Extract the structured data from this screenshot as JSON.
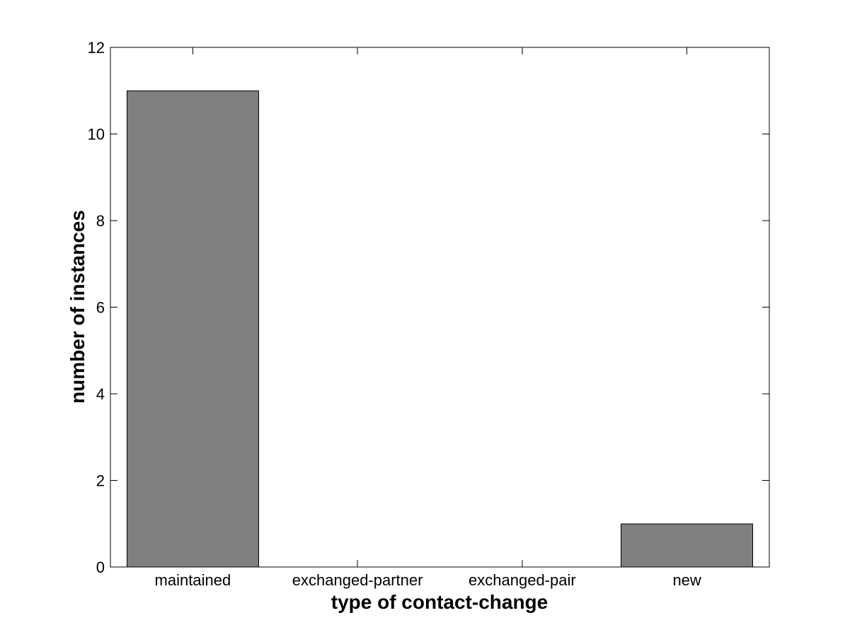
{
  "figure": {
    "background_color": "#ffffff"
  },
  "chart_data": {
    "type": "bar",
    "title": "",
    "categories": [
      "maintained",
      "exchanged-partner",
      "exchanged-pair",
      "new"
    ],
    "values": [
      11,
      0,
      0,
      1
    ],
    "xlabel": "type of contact-change",
    "ylabel": "number of instances",
    "ylim": [
      0,
      12
    ],
    "yticks": [
      0,
      2,
      4,
      6,
      8,
      10,
      12
    ],
    "ytick_labels": [
      "0",
      "2",
      "4",
      "6",
      "8",
      "10",
      "12"
    ],
    "bar_width_fraction": 0.8,
    "bar_color": "#7f7f7f",
    "bar_edge_color": "#000000",
    "axis_color": "#000000",
    "background": "#ffffff",
    "grid": false,
    "legend_position": "none",
    "tick_direction": "in",
    "box": true
  }
}
